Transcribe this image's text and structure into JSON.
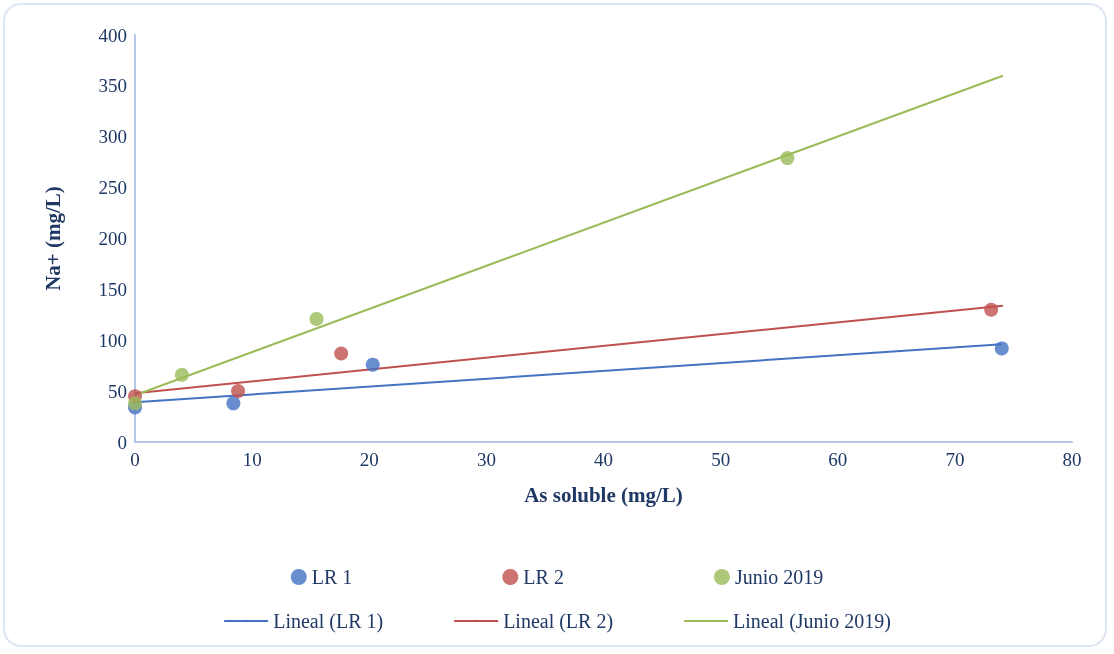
{
  "chart_data": {
    "type": "scatter",
    "xlabel": "As soluble (mg/L)",
    "ylabel": "Na+ (mg/L)",
    "xlim": [
      0,
      80
    ],
    "xticks": [
      0,
      10,
      20,
      30,
      40,
      50,
      60,
      70,
      80
    ],
    "ylim": [
      0,
      400
    ],
    "yticks": [
      0,
      50,
      100,
      150,
      200,
      250,
      300,
      350,
      400
    ],
    "grid": false,
    "legend": "bottom",
    "marker": "circle",
    "series": [
      {
        "name": "LR 1",
        "color": "#4472c4",
        "x": [
          0,
          8.4,
          20.3,
          74.0
        ],
        "values": [
          34,
          38,
          76,
          92
        ]
      },
      {
        "name": "LR 2",
        "color": "#c0504d",
        "x": [
          0,
          8.8,
          17.6,
          73.1
        ],
        "values": [
          45,
          50,
          87,
          130
        ]
      },
      {
        "name": "Junio 2019",
        "color": "#9bbb59",
        "x": [
          0,
          4.0,
          15.5,
          55.7
        ],
        "values": [
          38,
          66,
          121,
          279
        ]
      },
      {
        "name": "Lineal (LR 1)",
        "type": "line",
        "marker": "none",
        "color": "#4472c4",
        "x": [
          0,
          74.0
        ],
        "values": [
          39,
          96
        ]
      },
      {
        "name": "Lineal (LR 2)",
        "type": "line",
        "marker": "none",
        "color": "#c0504d",
        "x": [
          0,
          74.1
        ],
        "values": [
          48,
          134
        ]
      },
      {
        "name": "Lineal (Junio 2019)",
        "type": "line",
        "marker": "none",
        "color": "#9bbb59",
        "x": [
          0,
          74.1
        ],
        "values": [
          46,
          360
        ]
      }
    ]
  }
}
